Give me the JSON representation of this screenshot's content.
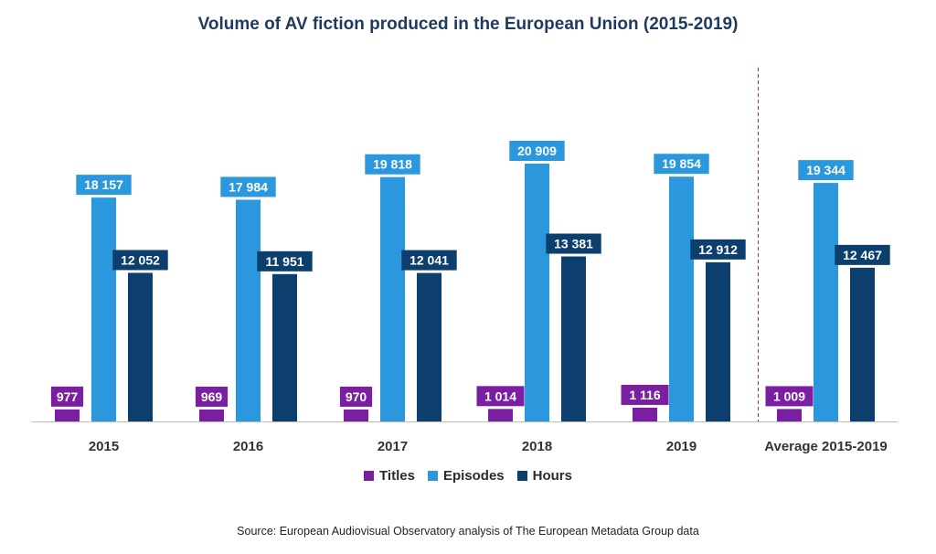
{
  "chart_data": {
    "type": "bar",
    "title": "Volume of AV fiction produced in the European Union (2015-2019)",
    "categories": [
      "2015",
      "2016",
      "2017",
      "2018",
      "2019",
      "Average 2015-2019"
    ],
    "series": [
      {
        "name": "Titles",
        "color": "#7b1fa2",
        "values": [
          977,
          969,
          970,
          1014,
          1116,
          1009
        ],
        "labels": [
          "977",
          "969",
          "970",
          "1 014",
          "1 116",
          "1 009"
        ]
      },
      {
        "name": "Episodes",
        "color": "#2b98de",
        "values": [
          18157,
          17984,
          19818,
          20909,
          19854,
          19344
        ],
        "labels": [
          "18 157",
          "17 984",
          "19 818",
          "20 909",
          "19 854",
          "19 344"
        ]
      },
      {
        "name": "Hours",
        "color": "#0c3f6e",
        "values": [
          12052,
          11951,
          12041,
          13381,
          12912,
          12467
        ],
        "labels": [
          "12 052",
          "11 951",
          "12 041",
          "13 381",
          "12 912",
          "12 467"
        ]
      }
    ],
    "xlabel": "",
    "ylabel": "",
    "ylim": [
      0,
      23000
    ],
    "grid": false,
    "legend_position": "bottom",
    "source": "Source: European Audiovisual Observatory analysis of The European Metadata Group data"
  }
}
